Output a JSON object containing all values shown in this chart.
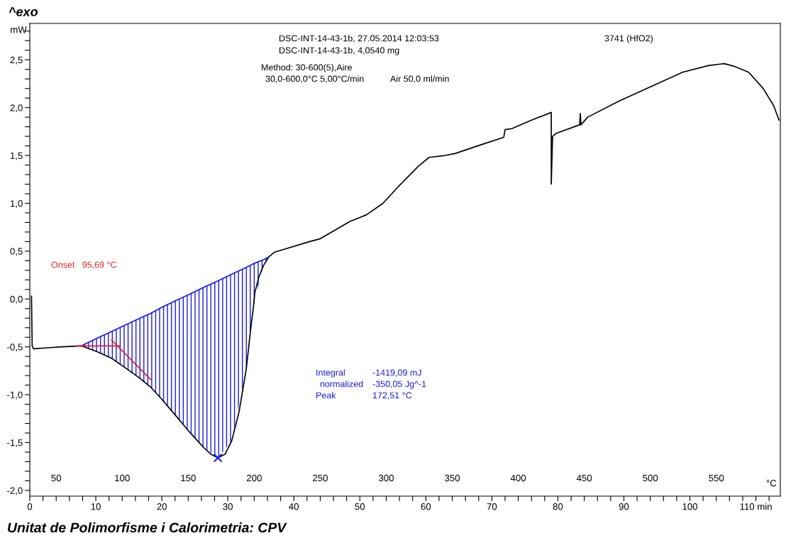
{
  "chart_data": {
    "type": "line",
    "ylabel": "mW",
    "x2label": "°C",
    "xlim": [
      0,
      113.7
    ],
    "x2lim": [
      30,
      598.5
    ],
    "ylim": [
      -2.06,
      2.88
    ],
    "xticks": [
      0,
      10,
      20,
      30,
      40,
      50,
      60,
      70,
      80,
      90,
      100,
      {
        "value": 110,
        "label": "110 min"
      },
      {
        "value": 2,
        "label": null
      },
      {
        "value": 4,
        "label": null
      },
      {
        "value": 6,
        "label": null
      },
      {
        "value": 8,
        "label": null
      },
      {
        "value": 12,
        "label": null
      },
      {
        "value": 14,
        "label": null
      },
      {
        "value": 16,
        "label": null
      },
      {
        "value": 18,
        "label": null
      },
      {
        "value": 22,
        "label": null
      },
      {
        "value": 24,
        "label": null
      },
      {
        "value": 26,
        "label": null
      },
      {
        "value": 28,
        "label": null
      },
      {
        "value": 32,
        "label": null
      },
      {
        "value": 34,
        "label": null
      },
      {
        "value": 36,
        "label": null
      },
      {
        "value": 38,
        "label": null
      },
      {
        "value": 42,
        "label": null
      },
      {
        "value": 44,
        "label": null
      },
      {
        "value": 46,
        "label": null
      },
      {
        "value": 48,
        "label": null
      },
      {
        "value": 52,
        "label": null
      },
      {
        "value": 54,
        "label": null
      },
      {
        "value": 56,
        "label": null
      },
      {
        "value": 58,
        "label": null
      },
      {
        "value": 62,
        "label": null
      },
      {
        "value": 64,
        "label": null
      },
      {
        "value": 66,
        "label": null
      },
      {
        "value": 68,
        "label": null
      },
      {
        "value": 72,
        "label": null
      },
      {
        "value": 74,
        "label": null
      },
      {
        "value": 76,
        "label": null
      },
      {
        "value": 78,
        "label": null
      },
      {
        "value": 82,
        "label": null
      },
      {
        "value": 84,
        "label": null
      },
      {
        "value": 86,
        "label": null
      },
      {
        "value": 88,
        "label": null
      },
      {
        "value": 92,
        "label": null
      },
      {
        "value": 94,
        "label": null
      },
      {
        "value": 96,
        "label": null
      },
      {
        "value": 98,
        "label": null
      },
      {
        "value": 102,
        "label": null
      },
      {
        "value": 104,
        "label": null
      },
      {
        "value": 106,
        "label": null
      },
      {
        "value": 108,
        "label": null
      },
      {
        "value": 112,
        "label": null
      }
    ],
    "x2ticks": [
      50,
      100,
      150,
      200,
      250,
      300,
      350,
      400,
      450,
      500,
      550
    ],
    "yticks": [
      {
        "value": -2,
        "label": "-2,0"
      },
      {
        "value": -1.5,
        "label": "-1,5"
      },
      {
        "value": -1,
        "label": "-1,0"
      },
      {
        "value": -0.5,
        "label": "-0,5"
      },
      {
        "value": 0,
        "label": "0,0"
      },
      {
        "value": 0.5,
        "label": "0,5"
      },
      {
        "value": 1,
        "label": "1,0"
      },
      {
        "value": 1.5,
        "label": "1,5"
      },
      {
        "value": 2,
        "label": "2,0"
      },
      {
        "value": 2.5,
        "label": "2,5"
      },
      {
        "value": -1.9,
        "label": null
      },
      {
        "value": -1.8,
        "label": null
      },
      {
        "value": -1.7,
        "label": null
      },
      {
        "value": -1.6,
        "label": null
      },
      {
        "value": -1.4,
        "label": null
      },
      {
        "value": -1.3,
        "label": null
      },
      {
        "value": -1.2,
        "label": null
      },
      {
        "value": -1.1,
        "label": null
      },
      {
        "value": -0.9,
        "label": null
      },
      {
        "value": -0.8,
        "label": null
      },
      {
        "value": -0.7,
        "label": null
      },
      {
        "value": -0.6,
        "label": null
      },
      {
        "value": -0.4,
        "label": null
      },
      {
        "value": -0.3,
        "label": null
      },
      {
        "value": -0.2,
        "label": null
      },
      {
        "value": -0.1,
        "label": null
      },
      {
        "value": 0.1,
        "label": null
      },
      {
        "value": 0.2,
        "label": null
      },
      {
        "value": 0.3,
        "label": null
      },
      {
        "value": 0.4,
        "label": null
      },
      {
        "value": 0.6,
        "label": null
      },
      {
        "value": 0.7,
        "label": null
      },
      {
        "value": 0.8,
        "label": null
      },
      {
        "value": 0.9,
        "label": null
      },
      {
        "value": 1.1,
        "label": null
      },
      {
        "value": 1.2,
        "label": null
      },
      {
        "value": 1.3,
        "label": null
      },
      {
        "value": 1.4,
        "label": null
      },
      {
        "value": 1.6,
        "label": null
      },
      {
        "value": 1.7,
        "label": null
      },
      {
        "value": 1.8,
        "label": null
      },
      {
        "value": 1.9,
        "label": null
      },
      {
        "value": 2.1,
        "label": null
      },
      {
        "value": 2.2,
        "label": null
      },
      {
        "value": 2.3,
        "label": null
      },
      {
        "value": 2.4,
        "label": null
      },
      {
        "value": 2.6,
        "label": null
      },
      {
        "value": 2.7,
        "label": null
      },
      {
        "value": 2.8,
        "label": null
      }
    ],
    "grid": false,
    "legend": false,
    "marker": "none",
    "line_style": "solid",
    "series": [
      {
        "color": "#000000",
        "x": [
          0.26,
          0.36,
          0.58,
          2.7,
          4.9,
          7.8,
          10.2,
          12.4,
          14.5,
          16.7,
          18.3,
          19.9,
          22.0,
          24.2,
          26.3,
          27.4,
          28.5,
          29.6,
          30.6,
          31.7,
          32.8,
          33.5,
          33.9,
          34.1,
          34.7,
          35.4,
          36.2,
          37.1,
          42.4,
          44.0,
          48.5,
          51.0,
          53.5,
          55.9,
          58.9,
          60.5,
          62.9,
          64.4,
          68.7,
          71.8,
          72.0,
          73.0,
          76.4,
          79.0,
          79.0,
          79.2,
          79.7,
          83.3,
          83.4,
          83.5,
          84.5,
          89.3,
          94.1,
          98.9,
          102.8,
          105.2,
          106.8,
          108.9,
          111.1,
          112.7,
          113.5
        ],
        "values": [
          0.03,
          -0.49,
          -0.52,
          -0.51,
          -0.5,
          -0.49,
          -0.55,
          -0.62,
          -0.72,
          -0.83,
          -0.92,
          -1.04,
          -1.21,
          -1.39,
          -1.55,
          -1.62,
          -1.66,
          -1.62,
          -1.48,
          -1.18,
          -0.73,
          -0.29,
          -0.07,
          0.07,
          0.23,
          0.35,
          0.44,
          0.49,
          0.6,
          0.63,
          0.81,
          0.88,
          1.0,
          1.18,
          1.39,
          1.48,
          1.5,
          1.52,
          1.62,
          1.69,
          1.77,
          1.78,
          1.88,
          1.95,
          1.2,
          1.7,
          1.73,
          1.82,
          1.94,
          1.82,
          1.9,
          2.07,
          2.22,
          2.37,
          2.44,
          2.46,
          2.43,
          2.37,
          2.2,
          2.02,
          1.87
        ]
      },
      {
        "type": "line",
        "color": "#1a1ae6",
        "x": [
          7.8,
          10.2,
          12.4,
          14.5,
          16.7,
          18.3,
          19.9,
          22.0,
          24.2,
          26.3,
          28.5,
          30.6,
          32.8,
          33.9,
          35.4,
          36.2
        ],
        "values": [
          -0.49,
          -0.41,
          -0.34,
          -0.27,
          -0.2,
          -0.15,
          -0.09,
          -0.02,
          0.05,
          0.12,
          0.19,
          0.26,
          0.33,
          0.37,
          0.41,
          0.44
        ],
        "upper": [
          -0.49,
          -0.41,
          -0.34,
          -0.27,
          -0.2,
          -0.15,
          -0.09,
          -0.02,
          0.05,
          0.12,
          0.19,
          0.26,
          0.33,
          0.37,
          0.41,
          0.44
        ],
        "lower": [
          -0.49,
          -0.55,
          -0.62,
          -0.72,
          -0.83,
          -0.92,
          -1.04,
          -1.21,
          -1.39,
          -1.55,
          -1.66,
          -1.48,
          -0.73,
          -0.07,
          0.35,
          0.44
        ]
      },
      {
        "type": "line",
        "color": "#e62020",
        "x": [
          7.0,
          13.7
        ],
        "values": [
          -0.49,
          -0.49
        ]
      },
      {
        "type": "line",
        "color": "#e62020",
        "x": [
          12.4,
          18.3
        ],
        "values": [
          -0.43,
          -0.84
        ]
      },
      {
        "type": "scatter",
        "color": "#1a1ae6",
        "marker": "cross",
        "x": [
          28.5
        ],
        "values": [
          -1.66
        ]
      }
    ],
    "annotations": [
      "^exo",
      "DSC-INT-14-43-1b, 27.05.2014 12:03:53",
      "DSC-INT-14-43-1b, 4,0540 mg",
      "3741 (HfO2)",
      "Method: 30-600(5),Aire",
      "30,0-600,0°C 5,00°C/min",
      "Air 50,0 ml/min",
      "Onset   95,69 °C",
      "Integral",
      "-1419,09 mJ",
      "normalized",
      "-350,05 Jg^-1",
      "Peak",
      "172,51 °C",
      "Unitat de Polimorfisme i Calorimetria: CPV"
    ]
  }
}
